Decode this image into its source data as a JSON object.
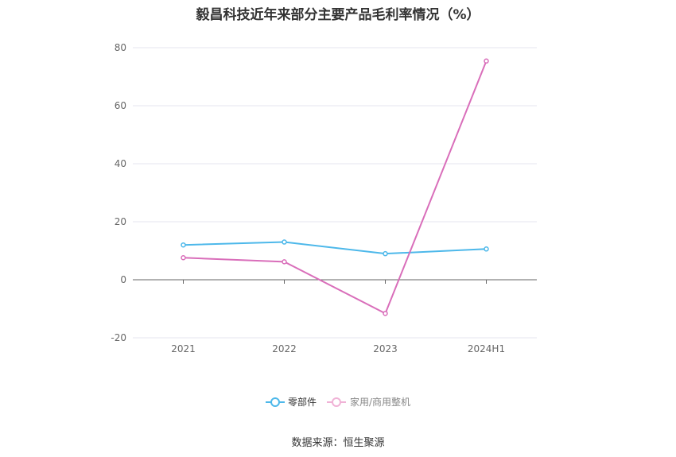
{
  "chart_data": {
    "type": "line",
    "title": "毅昌科技近年来部分主要产品毛利率情况（%）",
    "categories": [
      "2021",
      "2022",
      "2023",
      "2024H1"
    ],
    "series": [
      {
        "name": "零部件",
        "values": [
          12.0,
          13.0,
          9.0,
          10.6
        ],
        "color": "#4db8ea"
      },
      {
        "name": "家用/商用整机",
        "values": [
          7.6,
          6.2,
          -11.6,
          75.4
        ],
        "color": "#d96eba"
      }
    ],
    "ylim": [
      -20,
      80
    ],
    "yticks": [
      -20,
      0,
      20,
      40,
      60,
      80
    ],
    "grid": true,
    "legend_position": "bottom-center"
  },
  "source_note": "数据来源：恒生聚源"
}
